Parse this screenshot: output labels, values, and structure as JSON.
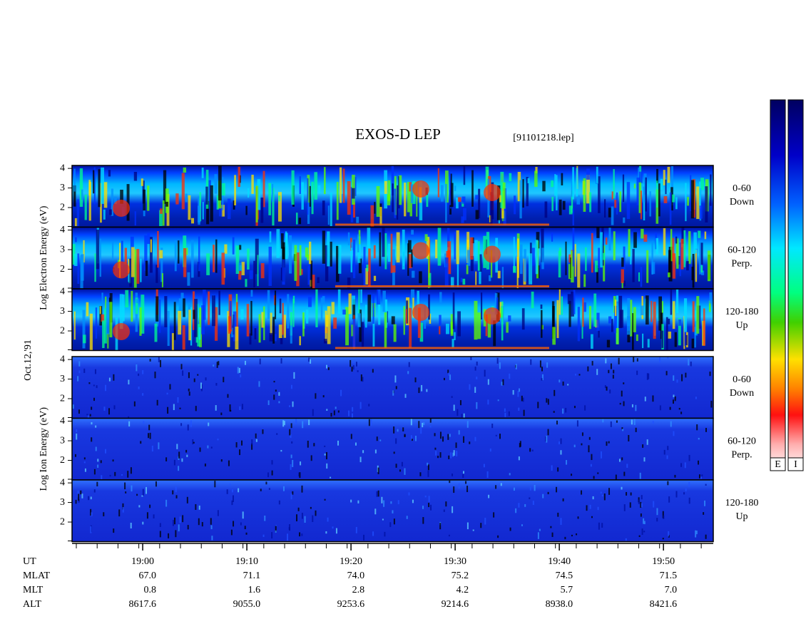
{
  "header": {
    "title": "EXOS-D LEP",
    "file": "[91101218.lep]"
  },
  "date": "Oct.12,'91",
  "groups": [
    {
      "label": "Log Electron Energy (eV)",
      "panels": [
        {
          "angle": "0-60",
          "direction": "Down"
        },
        {
          "angle": "60-120",
          "direction": "Perp."
        },
        {
          "angle": "120-180",
          "direction": "Up"
        }
      ]
    },
    {
      "label": "Log Ion Energy (eV)",
      "panels": [
        {
          "angle": "0-60",
          "direction": "Down"
        },
        {
          "angle": "60-120",
          "direction": "Perp."
        },
        {
          "angle": "120-180",
          "direction": "Up"
        }
      ]
    }
  ],
  "energy_axis": {
    "ylim": [
      1,
      4.15
    ],
    "yticks": [
      2,
      3,
      4
    ]
  },
  "time_axis": {
    "xlim": [
      "18:53:13",
      "19:54:47"
    ],
    "xticks": [
      "19:00",
      "19:10",
      "19:20",
      "19:30",
      "19:40",
      "19:50"
    ]
  },
  "ephemeris": {
    "rows": [
      {
        "label": "UT"
      },
      {
        "label": "MLAT",
        "values": [
          "67.0",
          "71.1",
          "74.0",
          "75.2",
          "74.5",
          "71.5"
        ]
      },
      {
        "label": "MLT",
        "values": [
          "0.8",
          "1.6",
          "2.8",
          "4.2",
          "5.7",
          "7.0"
        ]
      },
      {
        "label": "ALT",
        "values": [
          "8617.6",
          "9055.0",
          "9253.6",
          "9214.6",
          "8938.0",
          "8421.6"
        ]
      }
    ]
  },
  "colorbar": {
    "labels": [
      "E",
      "I"
    ]
  }
}
